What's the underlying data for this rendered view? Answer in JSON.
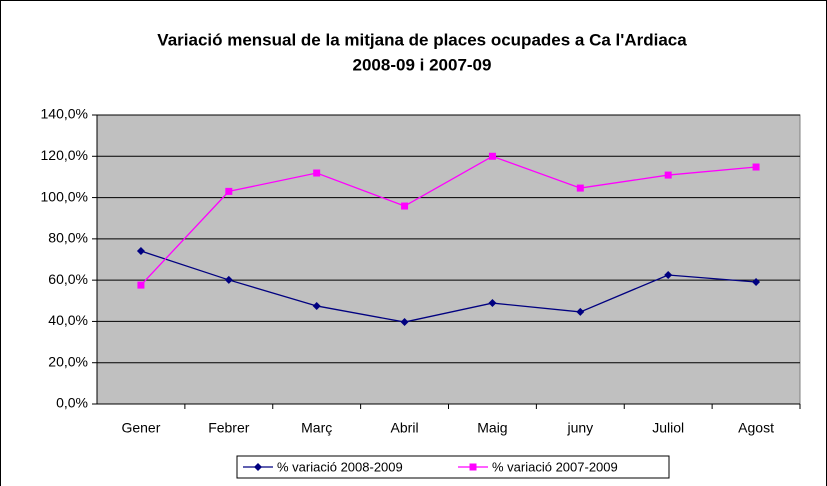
{
  "chart_data": {
    "type": "line",
    "title": "Variació mensual de la mitjana de places ocupades a Ca l'Ardiaca",
    "subtitle": "2008-09 i 2007-09",
    "categories": [
      "Gener",
      "Febrer",
      "Març",
      "Abril",
      "Maig",
      "juny",
      "Juliol",
      "Agost"
    ],
    "series": [
      {
        "name": "% variació 2008-2009",
        "color": "#000080",
        "marker": "diamond",
        "values": [
          74.1,
          60.1,
          47.5,
          39.7,
          48.9,
          44.6,
          62.5,
          59.1
        ]
      },
      {
        "name": "% variació 2007-2009",
        "color": "#ff00ff",
        "marker": "square",
        "values": [
          57.6,
          103,
          111.9,
          95.9,
          120,
          104.6,
          110.9,
          114.8
        ]
      }
    ],
    "ylim": [
      0,
      140
    ],
    "yticks": [
      {
        "value": 0,
        "label": "0,0%"
      },
      {
        "value": 20,
        "label": "20,0%"
      },
      {
        "value": 40,
        "label": "40,0%"
      },
      {
        "value": 60,
        "label": "60,0%"
      },
      {
        "value": 80,
        "label": "80,0%"
      },
      {
        "value": 100,
        "label": "100,0%"
      },
      {
        "value": 120,
        "label": "120,0%"
      },
      {
        "value": 140,
        "label": "140,0%"
      }
    ],
    "grid": true,
    "legend": "bottom",
    "plot_color": "#c0c0c0"
  }
}
